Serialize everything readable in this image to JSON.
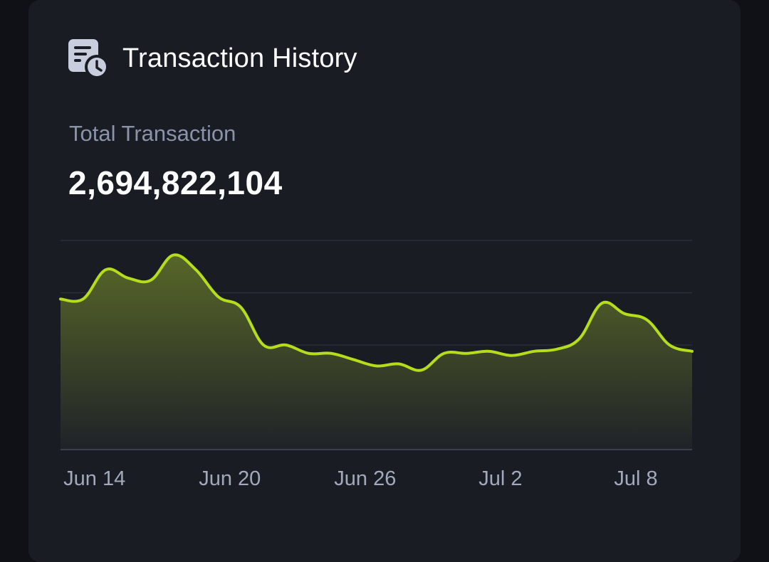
{
  "header": {
    "title": "Transaction History",
    "icon": "document-clock-icon"
  },
  "summary": {
    "label": "Total Transaction",
    "value": "2,694,822,104"
  },
  "colors": {
    "line": "#b5dd1a",
    "fill_top": "#5a6a28",
    "fill_bottom": "#1f2228",
    "grid": "#2a2d36",
    "axis": "#3c404c"
  },
  "chart_data": {
    "type": "area",
    "x_start": "Jun 13",
    "x_end": "Jul 11",
    "x_ticks": [
      "Jun 14",
      "Jun 20",
      "Jun 26",
      "Jul 2",
      "Jul 8"
    ],
    "ylim": [
      0,
      100
    ],
    "grid": true,
    "y_gridlines": 4,
    "legend": "none",
    "series": [
      {
        "x": [
          "Jun 13",
          "Jun 14",
          "Jun 15",
          "Jun 16",
          "Jun 17",
          "Jun 18",
          "Jun 19",
          "Jun 20",
          "Jun 21",
          "Jun 22",
          "Jun 23",
          "Jun 24",
          "Jun 25",
          "Jun 26",
          "Jun 27",
          "Jun 28",
          "Jun 29",
          "Jun 30",
          "Jul 1",
          "Jul 2",
          "Jul 3",
          "Jul 4",
          "Jul 5",
          "Jul 6",
          "Jul 7",
          "Jul 8",
          "Jul 9",
          "Jul 10",
          "Jul 11"
        ],
        "values": [
          72,
          72,
          86,
          82,
          81,
          93,
          86,
          73,
          68,
          50,
          50,
          46,
          46,
          43,
          40,
          41,
          38,
          46,
          46,
          47,
          45,
          47,
          48,
          53,
          70,
          65,
          62,
          50,
          47
        ]
      }
    ]
  }
}
